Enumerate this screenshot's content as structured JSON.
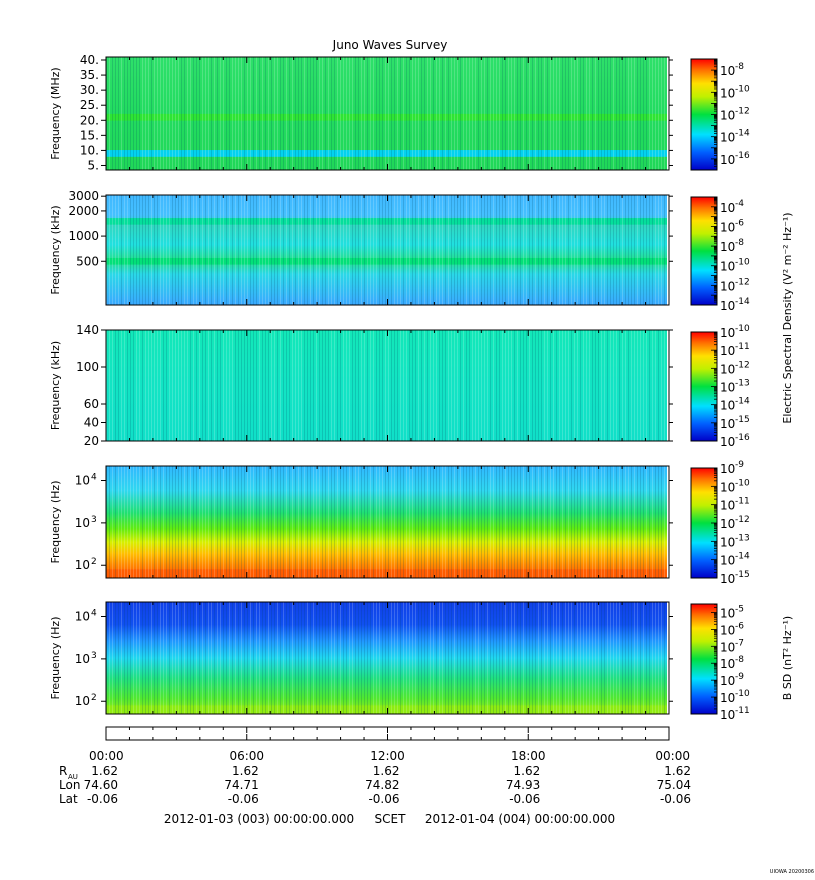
{
  "title": "Juno Waves Survey",
  "colorbar_labels": {
    "electric": "Electric Spectral Density (V² m⁻² Hz⁻¹)",
    "magnetic": "B SD (nT² Hz⁻¹)"
  },
  "footer": {
    "start": "2012-01-03 (003) 00:00:00.000",
    "scet": "SCET",
    "end": "2012-01-04 (004) 00:00:00.000"
  },
  "corner_stamp": "UIOWA 20200306",
  "ephemeris": {
    "times": [
      "00:00",
      "06:00",
      "12:00",
      "18:00",
      "00:00"
    ],
    "rows": [
      {
        "label": "R",
        "sub": "AU",
        "values": [
          "1.62",
          "1.62",
          "1.62",
          "1.62",
          "1.62"
        ]
      },
      {
        "label": "Lon",
        "sub": "",
        "values": [
          "74.60",
          "74.71",
          "74.82",
          "74.93",
          "75.04"
        ]
      },
      {
        "label": "Lat",
        "sub": "",
        "values": [
          "-0.06",
          "-0.06",
          "-0.06",
          "-0.06",
          "-0.06"
        ]
      }
    ]
  },
  "chart_data": [
    {
      "type": "heatmap",
      "ylabel": "Frequency (MHz)",
      "yscale": "linear",
      "ylim": [
        3.5,
        41
      ],
      "yticks": [
        {
          "v": 5,
          "t": "5."
        },
        {
          "v": 10,
          "t": "10."
        },
        {
          "v": 15,
          "t": "15."
        },
        {
          "v": 20,
          "t": "20."
        },
        {
          "v": 25,
          "t": "25."
        },
        {
          "v": 30,
          "t": "30."
        },
        {
          "v": 35,
          "t": "35."
        },
        {
          "v": 40,
          "t": "40."
        }
      ],
      "x_hours": [
        0,
        24
      ],
      "colorbar": {
        "exp_min": -17,
        "exp_max": -7,
        "ticks": [
          -8,
          -10,
          -12,
          -14,
          -16
        ]
      },
      "features": [
        {
          "freq": 21,
          "level": 0.54
        },
        {
          "freq": 9,
          "level": 0.3
        }
      ]
    },
    {
      "type": "heatmap",
      "ylabel": "Frequency (kHz)",
      "yscale": "log",
      "ylim": [
        150,
        3100
      ],
      "yticks": [
        {
          "v": 500,
          "t": "500"
        },
        {
          "v": 1000,
          "t": "1000"
        },
        {
          "v": 2000,
          "t": "2000"
        },
        {
          "v": 3000,
          "t": "3000"
        }
      ],
      "x_hours": [
        0,
        24
      ],
      "colorbar": {
        "exp_min": -14,
        "exp_max": -3,
        "ticks": [
          -4,
          -6,
          -8,
          -10,
          -12,
          -14
        ]
      },
      "features": [
        {
          "freq": 500,
          "level": 0.45
        },
        {
          "freq": 1500,
          "level": 0.42
        }
      ]
    },
    {
      "type": "heatmap",
      "ylabel": "Frequency (kHz)",
      "yscale": "linear",
      "ylim": [
        20,
        140
      ],
      "yticks": [
        {
          "v": 20,
          "t": "20"
        },
        {
          "v": 40,
          "t": "40"
        },
        {
          "v": 60,
          "t": "60"
        },
        {
          "v": 100,
          "t": "100"
        },
        {
          "v": 140,
          "t": "140"
        }
      ],
      "x_hours": [
        0,
        24
      ],
      "colorbar": {
        "exp_min": -16,
        "exp_max": -10,
        "ticks": [
          -10,
          -11,
          -12,
          -13,
          -14,
          -15,
          -16
        ]
      },
      "features": []
    },
    {
      "type": "heatmap",
      "ylabel": "Frequency (Hz)",
      "yscale": "log",
      "ylim": [
        50,
        22000
      ],
      "yticks": [
        {
          "v": 100,
          "t": "10",
          "sup": "2"
        },
        {
          "v": 1000,
          "t": "10",
          "sup": "3"
        },
        {
          "v": 10000,
          "t": "10",
          "sup": "4"
        }
      ],
      "x_hours": [
        0,
        24
      ],
      "colorbar": {
        "exp_min": -15,
        "exp_max": -9,
        "ticks": [
          -9,
          -10,
          -11,
          -12,
          -13,
          -14,
          -15
        ]
      },
      "features": [
        {
          "freq": 80,
          "level": 0.92
        }
      ]
    },
    {
      "type": "heatmap",
      "ylabel": "Frequency (Hz)",
      "yscale": "log",
      "ylim": [
        50,
        22000
      ],
      "yticks": [
        {
          "v": 100,
          "t": "10",
          "sup": "2"
        },
        {
          "v": 1000,
          "t": "10",
          "sup": "3"
        },
        {
          "v": 10000,
          "t": "10",
          "sup": "4"
        }
      ],
      "x_hours": [
        0,
        24
      ],
      "colorbar": {
        "exp_min": -11,
        "exp_max": -4.5,
        "ticks": [
          -5,
          -6,
          -7,
          -8,
          -9,
          -10,
          -11
        ]
      },
      "features": [
        {
          "freq": 80,
          "level": 0.62
        }
      ]
    }
  ]
}
